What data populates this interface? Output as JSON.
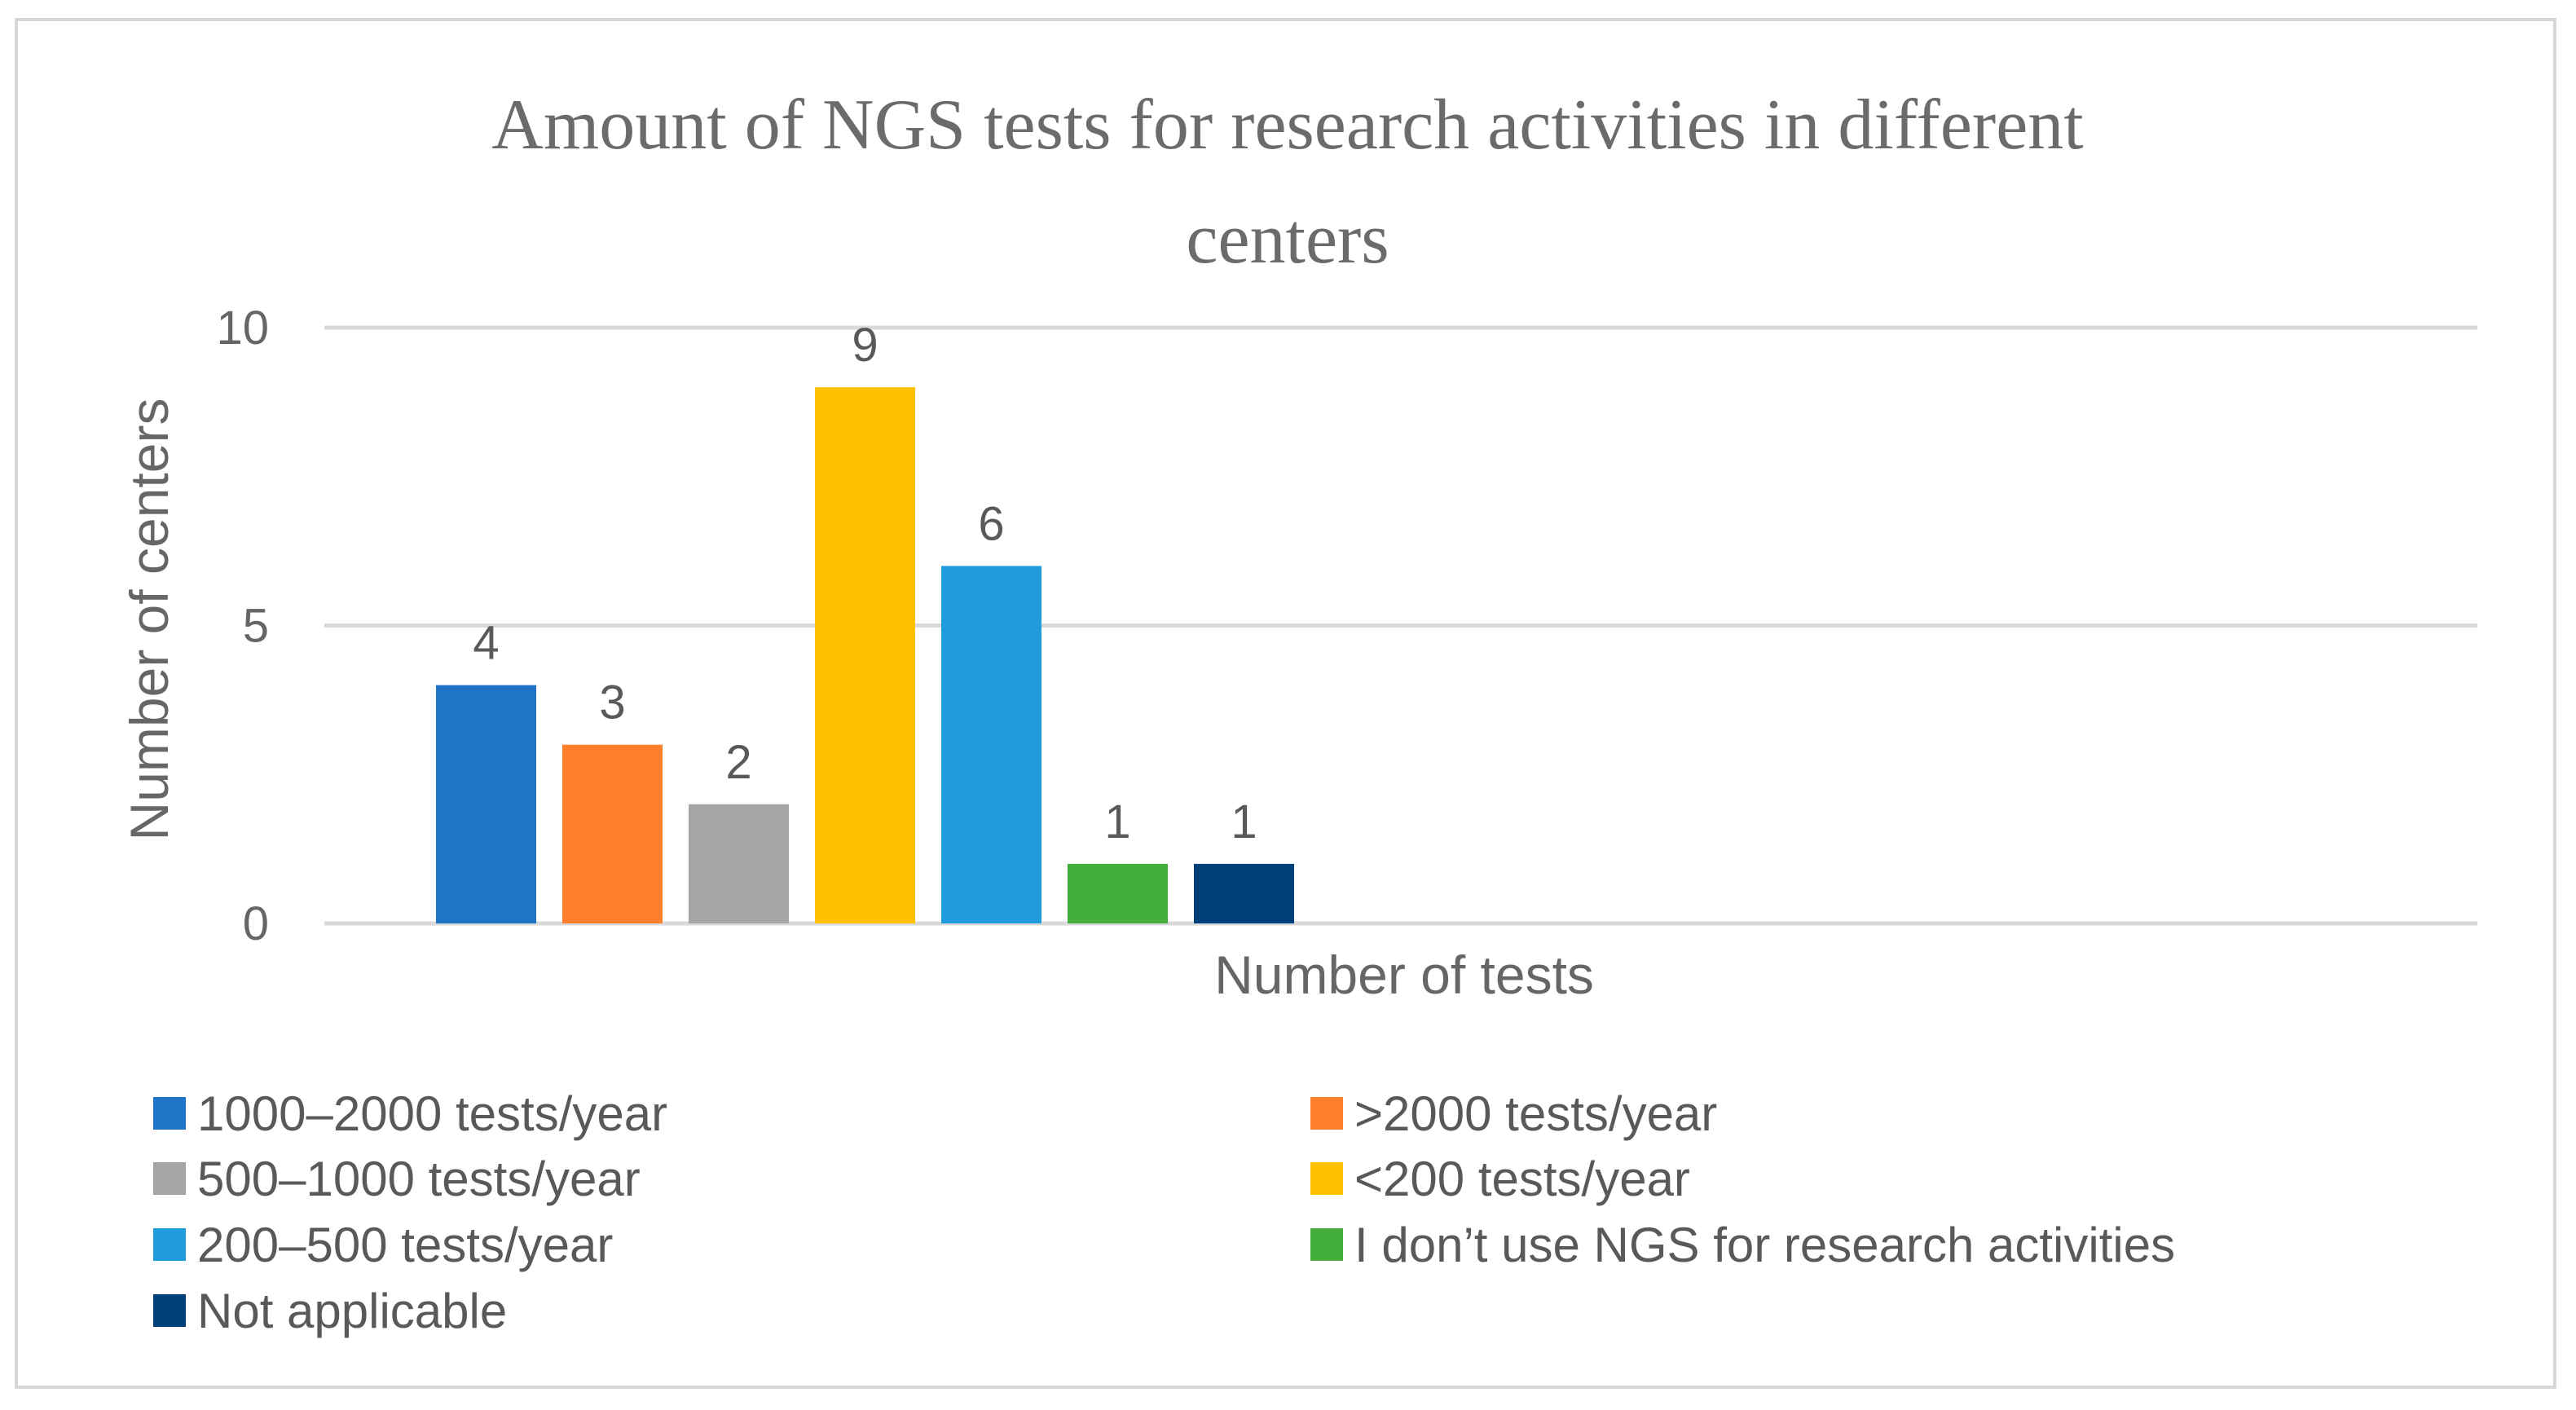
{
  "chart_data": {
    "type": "bar",
    "title_lines": [
      "Amount of NGS tests for research activities in different",
      "centers"
    ],
    "xlabel": "Number of tests",
    "ylabel": "Number of centers",
    "ylim": [
      0,
      10
    ],
    "yticks": [
      0,
      5,
      10
    ],
    "grid": true,
    "legend_position": "bottom",
    "series": [
      {
        "name": "1000–2000 tests/year",
        "value": 4,
        "color": "#1f74c8"
      },
      {
        "name": ">2000 tests/year",
        "value": 3,
        "color": "#fd7f2c"
      },
      {
        "name": "500–1000 tests/year",
        "value": 2,
        "color": "#a5a5a5"
      },
      {
        "name": "<200 tests/year",
        "value": 9,
        "color": "#ffc000"
      },
      {
        "name": "200–500 tests/year",
        "value": 6,
        "color": "#219bdc"
      },
      {
        "name": "I don’t use NGS for research activities",
        "value": 1,
        "color": "#44ae3c"
      },
      {
        "name": "Not applicable",
        "value": 1,
        "color": "#003f7a"
      }
    ]
  }
}
